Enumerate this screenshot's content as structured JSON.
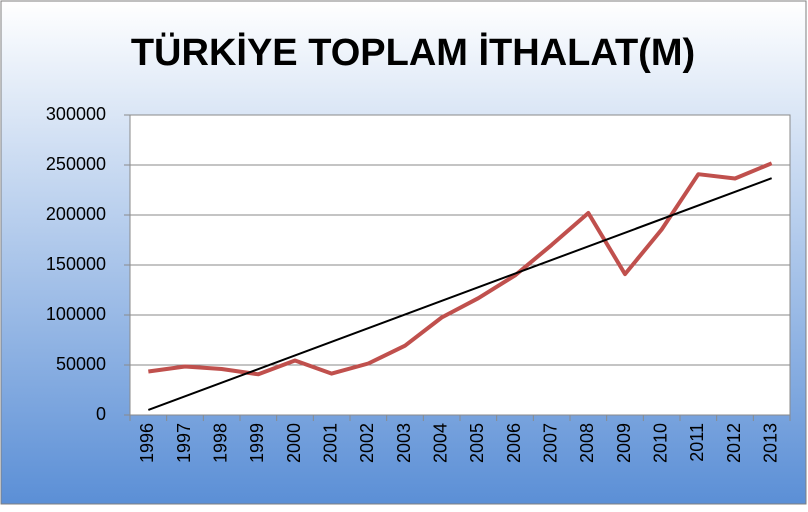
{
  "chart_data": {
    "type": "line",
    "title": "TÜRKİYE  TOPLAM İTHALAT(M)",
    "categories": [
      "1996",
      "1997",
      "1998",
      "1999",
      "2000",
      "2001",
      "2002",
      "2003",
      "2004",
      "2005",
      "2006",
      "2007",
      "2008",
      "2009",
      "2010",
      "2011",
      "2012",
      "2013"
    ],
    "series": [
      {
        "name": "TOPLAM İTHALAT",
        "color": "#c0504d",
        "values": [
          43500,
          48500,
          46000,
          40700,
          54500,
          41400,
          51500,
          69300,
          97500,
          116800,
          139600,
          170100,
          202000,
          140900,
          185500,
          240800,
          236500,
          251700
        ]
      }
    ],
    "ylim": [
      0,
      300000
    ],
    "yticks": [
      0,
      50000,
      100000,
      150000,
      200000,
      250000,
      300000
    ],
    "grid": true,
    "legend": false,
    "trendline": true,
    "trendline_color": "#000000"
  }
}
